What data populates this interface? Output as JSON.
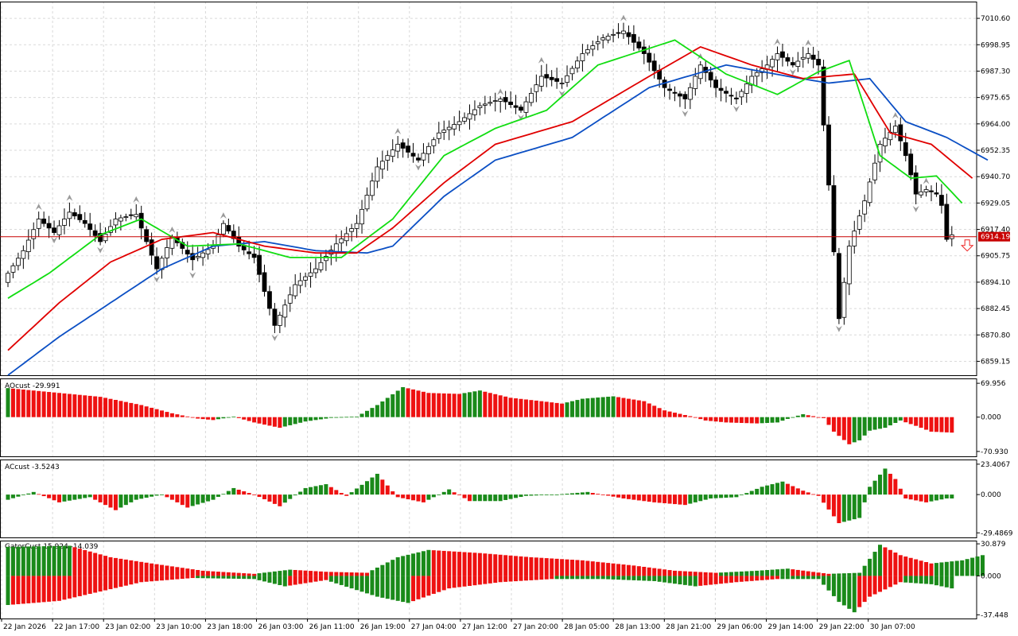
{
  "colors": {
    "grid": "#d9d9d9",
    "bull": "#ffffff",
    "bear": "#000000",
    "outline": "#000000",
    "fractal": "#9a9a9a",
    "jaw": "#0b4fc4",
    "teeth": "#e00000",
    "lips": "#11dd11",
    "up_bar": "#1a8a1a",
    "down_bar": "#ee1111",
    "bid_line": "#c80000",
    "signal_arrow": "#ee2222"
  },
  "chart_data": [
    {
      "type": "candlestick",
      "title": "",
      "price_axis_ticks": [
        "7010.60",
        "6998.95",
        "6987.30",
        "6975.65",
        "6964.00",
        "6952.35",
        "6940.70",
        "6929.05",
        "6917.40",
        "6905.75",
        "6894.10",
        "6882.45",
        "6870.80",
        "6859.15"
      ],
      "price_axis_values": [
        7010.6,
        6998.95,
        6987.3,
        6975.65,
        6964.0,
        6952.35,
        6940.7,
        6929.05,
        6917.4,
        6905.75,
        6894.1,
        6882.45,
        6870.8,
        6859.15
      ],
      "ylim": [
        6853.0,
        7018.0
      ],
      "current_price": "6914.19",
      "current_price_value": 6914.19,
      "time_labels": [
        "22 Jan 2026",
        "22 Jan 17:00",
        "23 Jan 02:00",
        "23 Jan 10:00",
        "23 Jan 18:00",
        "26 Jan 03:00",
        "26 Jan 11:00",
        "26 Jan 19:00",
        "27 Jan 04:00",
        "27 Jan 12:00",
        "27 Jan 20:00",
        "28 Jan 05:00",
        "28 Jan 13:00",
        "28 Jan 21:00",
        "29 Jan 06:00",
        "29 Jan 14:00",
        "29 Jan 22:00",
        "30 Jan 07:00"
      ],
      "close_anchors": [
        [
          0,
          6898
        ],
        [
          3,
          6908
        ],
        [
          6,
          6922
        ],
        [
          9,
          6916
        ],
        [
          12,
          6925
        ],
        [
          15,
          6920
        ],
        [
          18,
          6912
        ],
        [
          21,
          6922
        ],
        [
          25,
          6924
        ],
        [
          29,
          6900
        ],
        [
          32,
          6914
        ],
        [
          36,
          6904
        ],
        [
          40,
          6910
        ],
        [
          42,
          6920
        ],
        [
          45,
          6910
        ],
        [
          48,
          6905
        ],
        [
          52,
          6875
        ],
        [
          56,
          6893
        ],
        [
          60,
          6900
        ],
        [
          64,
          6911
        ],
        [
          68,
          6920
        ],
        [
          72,
          6945
        ],
        [
          76,
          6955
        ],
        [
          80,
          6948
        ],
        [
          84,
          6960
        ],
        [
          88,
          6965
        ],
        [
          92,
          6972
        ],
        [
          96,
          6975
        ],
        [
          100,
          6970
        ],
        [
          104,
          6985
        ],
        [
          108,
          6982
        ],
        [
          112,
          6995
        ],
        [
          116,
          7002
        ],
        [
          120,
          7005
        ],
        [
          124,
          6995
        ],
        [
          128,
          6980
        ],
        [
          132,
          6975
        ],
        [
          135,
          6990
        ],
        [
          138,
          6980
        ],
        [
          142,
          6975
        ],
        [
          145,
          6985
        ],
        [
          148,
          6990
        ],
        [
          150,
          6995
        ],
        [
          153,
          6990
        ],
        [
          156,
          6995
        ],
        [
          158,
          6990
        ],
        [
          160,
          6937
        ],
        [
          162,
          6878
        ],
        [
          164,
          6910
        ],
        [
          167,
          6930
        ],
        [
          170,
          6955
        ],
        [
          173,
          6963
        ],
        [
          175,
          6950
        ],
        [
          177,
          6933
        ],
        [
          179,
          6935
        ],
        [
          181,
          6933
        ],
        [
          182,
          6928
        ],
        [
          183,
          6913
        ],
        [
          184,
          6915
        ]
      ],
      "lines": [
        {
          "name": "jaw",
          "anchors": [
            [
              0,
              6853
            ],
            [
              10,
              6870
            ],
            [
              20,
              6885
            ],
            [
              30,
              6900
            ],
            [
              40,
              6910
            ],
            [
              50,
              6912
            ],
            [
              60,
              6908
            ],
            [
              70,
              6907
            ],
            [
              75,
              6910
            ],
            [
              85,
              6932
            ],
            [
              95,
              6948
            ],
            [
              110,
              6958
            ],
            [
              125,
              6980
            ],
            [
              140,
              6990
            ],
            [
              152,
              6985
            ],
            [
              160,
              6982
            ],
            [
              168,
              6984
            ],
            [
              175,
              6965
            ],
            [
              183,
              6958
            ],
            [
              191,
              6948
            ]
          ]
        },
        {
          "name": "teeth",
          "anchors": [
            [
              0,
              6864
            ],
            [
              10,
              6885
            ],
            [
              20,
              6903
            ],
            [
              30,
              6913
            ],
            [
              40,
              6916
            ],
            [
              50,
              6910
            ],
            [
              60,
              6907
            ],
            [
              68,
              6907
            ],
            [
              75,
              6918
            ],
            [
              85,
              6938
            ],
            [
              95,
              6955
            ],
            [
              110,
              6965
            ],
            [
              125,
              6985
            ],
            [
              135,
              6998
            ],
            [
              145,
              6990
            ],
            [
              155,
              6984
            ],
            [
              165,
              6986
            ],
            [
              172,
              6960
            ],
            [
              180,
              6955
            ],
            [
              188,
              6940
            ]
          ]
        },
        {
          "name": "lips",
          "anchors": [
            [
              0,
              6887
            ],
            [
              8,
              6898
            ],
            [
              18,
              6915
            ],
            [
              26,
              6922
            ],
            [
              35,
              6910
            ],
            [
              45,
              6911
            ],
            [
              55,
              6905
            ],
            [
              65,
              6905
            ],
            [
              75,
              6922
            ],
            [
              85,
              6950
            ],
            [
              95,
              6962
            ],
            [
              105,
              6970
            ],
            [
              115,
              6990
            ],
            [
              130,
              7001
            ],
            [
              140,
              6986
            ],
            [
              150,
              6977
            ],
            [
              158,
              6987
            ],
            [
              164,
              6992
            ],
            [
              170,
              6950
            ],
            [
              176,
              6940
            ],
            [
              181,
              6941
            ],
            [
              186,
              6929
            ]
          ]
        }
      ]
    },
    {
      "type": "bar",
      "title": "AOcust",
      "value_label": "-29.991",
      "y_ticks": [
        "69.956",
        "0.000",
        "-70.930"
      ],
      "y_tick_values": [
        69.956,
        0,
        -70.93
      ],
      "ylim": [
        -81,
        80
      ],
      "anchors": [
        [
          0,
          60
        ],
        [
          18,
          42
        ],
        [
          26,
          25
        ],
        [
          32,
          8
        ],
        [
          37,
          -3
        ],
        [
          40,
          -6
        ],
        [
          44,
          1
        ],
        [
          48,
          -11
        ],
        [
          53,
          -22
        ],
        [
          58,
          -9
        ],
        [
          64,
          0
        ],
        [
          68,
          1
        ],
        [
          72,
          25
        ],
        [
          77,
          62
        ],
        [
          82,
          50
        ],
        [
          88,
          48
        ],
        [
          92,
          55
        ],
        [
          98,
          40
        ],
        [
          104,
          33
        ],
        [
          108,
          28
        ],
        [
          112,
          38
        ],
        [
          118,
          43
        ],
        [
          124,
          33
        ],
        [
          128,
          14
        ],
        [
          133,
          2
        ],
        [
          136,
          -7
        ],
        [
          140,
          -11
        ],
        [
          146,
          -13
        ],
        [
          150,
          -11
        ],
        [
          153,
          0
        ],
        [
          155,
          6
        ],
        [
          159,
          -2
        ],
        [
          161,
          -30
        ],
        [
          164,
          -56
        ],
        [
          166,
          -48
        ],
        [
          168,
          -28
        ],
        [
          171,
          -22
        ],
        [
          174,
          -7
        ],
        [
          177,
          -18
        ],
        [
          180,
          -30
        ],
        [
          184,
          -32
        ]
      ]
    },
    {
      "type": "bar",
      "title": "ACcust",
      "value_label": "-3.5243",
      "y_ticks": [
        "23.4067",
        "0.000",
        "-29.4869"
      ],
      "y_tick_values": [
        23.4067,
        0,
        -29.4869
      ],
      "ylim": [
        -33,
        27
      ],
      "anchors": [
        [
          0,
          -4
        ],
        [
          5,
          2
        ],
        [
          10,
          -6
        ],
        [
          16,
          -2
        ],
        [
          21,
          -12
        ],
        [
          25,
          -4
        ],
        [
          30,
          0
        ],
        [
          35,
          -10
        ],
        [
          40,
          -4
        ],
        [
          44,
          5
        ],
        [
          48,
          0
        ],
        [
          53,
          -9
        ],
        [
          58,
          5
        ],
        [
          62,
          8
        ],
        [
          66,
          -1
        ],
        [
          72,
          16
        ],
        [
          76,
          -2
        ],
        [
          81,
          -6
        ],
        [
          86,
          4
        ],
        [
          90,
          -5
        ],
        [
          96,
          -5
        ],
        [
          101,
          -1
        ],
        [
          107,
          0
        ],
        [
          113,
          2
        ],
        [
          120,
          -3
        ],
        [
          126,
          -6
        ],
        [
          132,
          -8
        ],
        [
          137,
          -3
        ],
        [
          142,
          -2
        ],
        [
          147,
          6
        ],
        [
          151,
          10
        ],
        [
          155,
          3
        ],
        [
          158,
          -1
        ],
        [
          162,
          -22
        ],
        [
          166,
          -18
        ],
        [
          168,
          6
        ],
        [
          171,
          20
        ],
        [
          173,
          12
        ],
        [
          175,
          -3
        ],
        [
          179,
          -6
        ],
        [
          183,
          -3
        ]
      ]
    },
    {
      "type": "bar",
      "title": "GatorCust",
      "value_label": "15.924 -14.039",
      "y_ticks": [
        "30.879",
        "0.000",
        "-37.448"
      ],
      "y_tick_values": [
        30.879,
        0,
        -37.448
      ],
      "ylim": [
        -41,
        34
      ],
      "series": [
        {
          "name": "upper",
          "anchors": [
            [
              0,
              28
            ],
            [
              12,
              29
            ],
            [
              20,
              18
            ],
            [
              28,
              12
            ],
            [
              38,
              5
            ],
            [
              48,
              2
            ],
            [
              55,
              6
            ],
            [
              62,
              4
            ],
            [
              70,
              3
            ],
            [
              76,
              18
            ],
            [
              82,
              25
            ],
            [
              92,
              22
            ],
            [
              102,
              18
            ],
            [
              112,
              15
            ],
            [
              122,
              10
            ],
            [
              130,
              5
            ],
            [
              138,
              3
            ],
            [
              146,
              5
            ],
            [
              152,
              7
            ],
            [
              160,
              2
            ],
            [
              166,
              3
            ],
            [
              170,
              30
            ],
            [
              174,
              20
            ],
            [
              180,
              12
            ],
            [
              186,
              15
            ],
            [
              190,
              20
            ]
          ]
        },
        {
          "name": "lower",
          "anchors": [
            [
              0,
              -28
            ],
            [
              10,
              -24
            ],
            [
              18,
              -15
            ],
            [
              26,
              -6
            ],
            [
              36,
              -2
            ],
            [
              48,
              -3
            ],
            [
              54,
              -10
            ],
            [
              62,
              -4
            ],
            [
              72,
              -20
            ],
            [
              78,
              -26
            ],
            [
              86,
              -12
            ],
            [
              96,
              -6
            ],
            [
              106,
              -3
            ],
            [
              116,
              -3
            ],
            [
              126,
              -5
            ],
            [
              134,
              -10
            ],
            [
              142,
              -6
            ],
            [
              150,
              -3
            ],
            [
              158,
              -3
            ],
            [
              162,
              -25
            ],
            [
              165,
              -35
            ],
            [
              168,
              -20
            ],
            [
              174,
              -6
            ],
            [
              180,
              -8
            ],
            [
              184,
              -12
            ]
          ]
        }
      ]
    }
  ]
}
